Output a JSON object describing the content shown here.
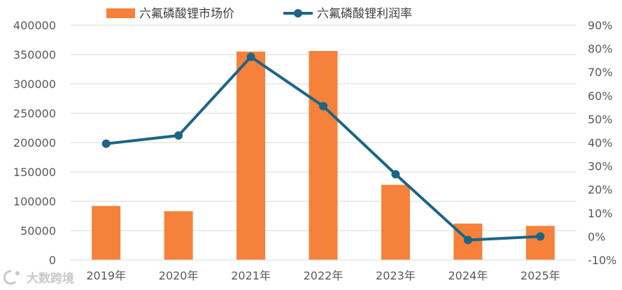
{
  "chart_data": {
    "type": "bar",
    "categories": [
      "2019年",
      "2020年",
      "2021年",
      "2022年",
      "2023年",
      "2024年",
      "2025年"
    ],
    "series": [
      {
        "name": "六氟磷酸锂市场价",
        "type": "bar",
        "axis": "left",
        "color": "#F5813A",
        "values": [
          92000,
          83000,
          355000,
          356000,
          128000,
          62000,
          58000
        ]
      },
      {
        "name": "六氟磷酸锂利润率",
        "type": "line",
        "axis": "right",
        "color": "#1B6587",
        "values": [
          39.5,
          43,
          76.5,
          55.5,
          26.5,
          -1.5,
          0
        ]
      }
    ],
    "y_left": {
      "lim": [
        0,
        400000
      ],
      "ticks": [
        "0",
        "50000",
        "100000",
        "150000",
        "200000",
        "250000",
        "300000",
        "350000",
        "400000"
      ]
    },
    "y_right": {
      "lim": [
        -10,
        90
      ],
      "ticks": [
        "-10%",
        "0%",
        "10%",
        "20%",
        "30%",
        "40%",
        "50%",
        "60%",
        "70%",
        "80%",
        "90%"
      ]
    },
    "legend_position": "top",
    "grid": true,
    "gridline_color": "#D9D9D9"
  },
  "watermark": {
    "text": "大数跨境",
    "logo_icon": "brand-logo-icon"
  }
}
